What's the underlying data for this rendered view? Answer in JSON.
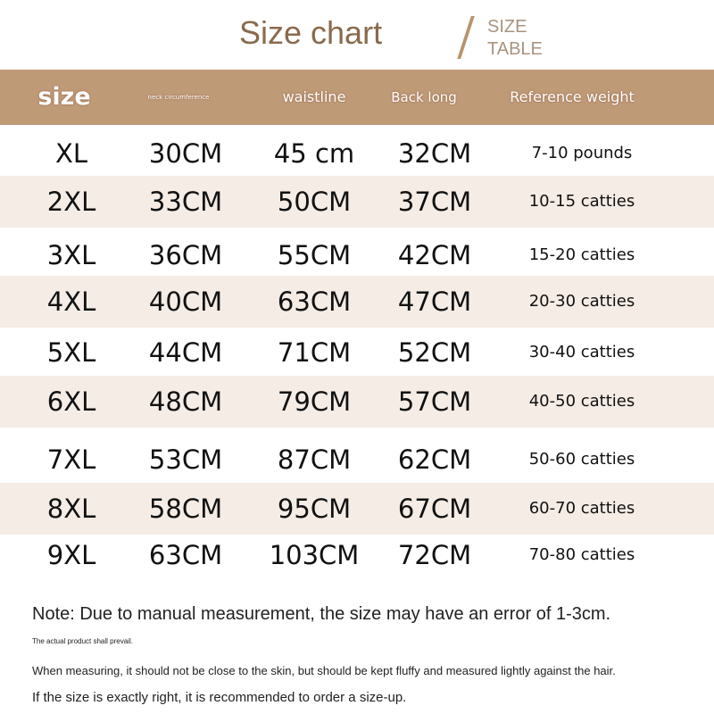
{
  "title": "Size chart",
  "subtitle_line1": "SIZE",
  "subtitle_line2": "TABLE",
  "header_color": "#bf9a77",
  "stripe_color": "#f4ece5",
  "columns": [
    "size",
    "neck circumference",
    "waistline",
    "Back long",
    "Reference weight"
  ],
  "rows": [
    [
      "XL",
      "30CM",
      "45 cm",
      "32CM",
      "7-10 pounds"
    ],
    [
      "2XL",
      "33CM",
      "50CM",
      "37CM",
      "10-15 catties"
    ],
    [
      "3XL",
      "36CM",
      "55CM",
      "42CM",
      "15-20 catties"
    ],
    [
      "4XL",
      "40CM",
      "63CM",
      "47CM",
      "20-30 catties"
    ],
    [
      "5XL",
      "44CM",
      "71CM",
      "52CM",
      "30-40 catties"
    ],
    [
      "6XL",
      "48CM",
      "79CM",
      "57CM",
      "40-50 catties"
    ],
    [
      "7XL",
      "53CM",
      "87CM",
      "62CM",
      "50-60 catties"
    ],
    [
      "8XL",
      "58CM",
      "95CM",
      "67CM",
      "60-70 catties"
    ],
    [
      "9XL",
      "63CM",
      "103CM",
      "72CM",
      "70-80 catties"
    ]
  ],
  "notes": [
    "Note: Due to manual measurement, the size may have an error of 1-3cm.",
    "The actual product shall prevail.",
    "When measuring, it should not be close to the skin, but should be kept fluffy and measured lightly against the hair.",
    "If the size is exactly right, it is recommended to order a size-up."
  ]
}
